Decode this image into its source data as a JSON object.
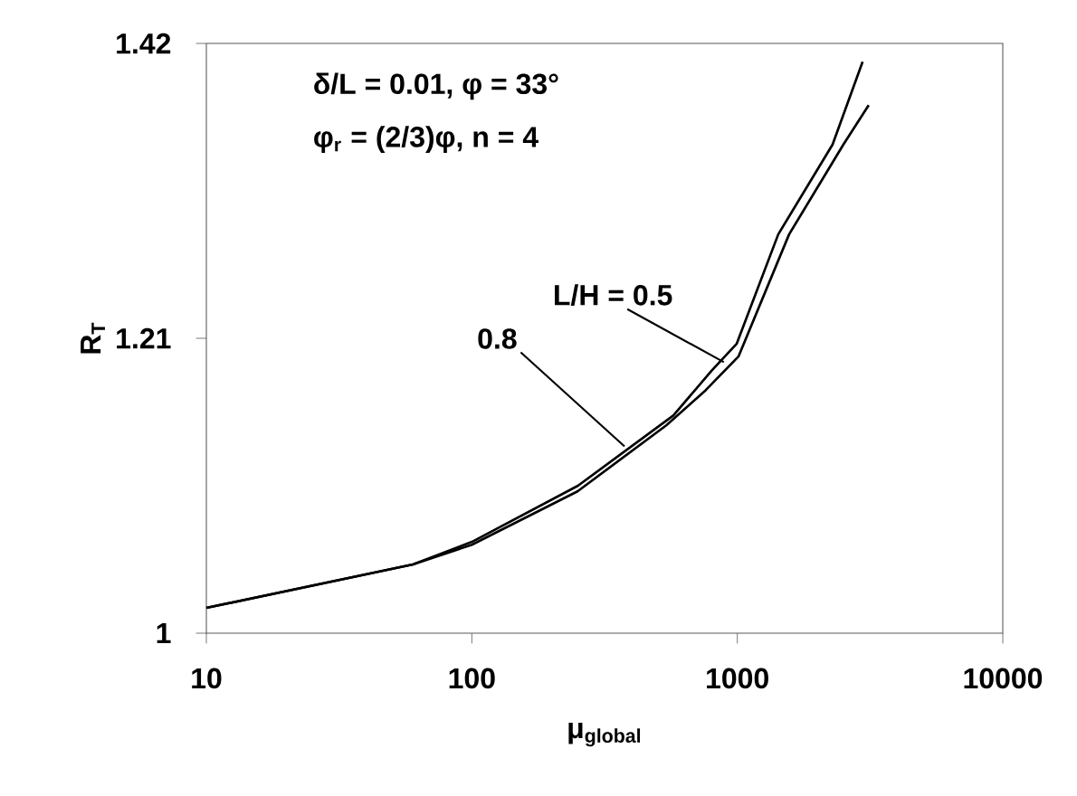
{
  "chart_data": {
    "type": "line",
    "xlabel": "μ$_{global}$",
    "ylabel": "R$_{T}$",
    "log": "x",
    "xlim": [
      10,
      10000
    ],
    "xticks": [
      10,
      100,
      1000,
      10000
    ],
    "ylim": [
      1,
      1.42
    ],
    "yticks": [
      1,
      1.21,
      1.42
    ],
    "marker": "none",
    "line_style": "solid",
    "series": [
      {
        "color": "#000000",
        "x": [
          10,
          60,
          100,
          250,
          540,
          760,
          1010,
          1567,
          2510,
          3126
        ],
        "values": [
          1.018,
          1.049,
          1.063,
          1.101,
          1.148,
          1.173,
          1.197,
          1.284,
          1.348,
          1.376
        ]
      },
      {
        "color": "#000000",
        "x": [
          10,
          60,
          100,
          251,
          574,
          801,
          994,
          1426,
          2285,
          2965
        ],
        "values": [
          1.018,
          1.049,
          1.065,
          1.105,
          1.155,
          1.187,
          1.206,
          1.284,
          1.348,
          1.407
        ]
      }
    ],
    "annotations": [
      "δ/L = 0.01, φ = 33°",
      "φ$_{r}$ = (2/3)φ, n = 4",
      {
        "text": "L/H = 0.5",
        "x": 890,
        "y": 1.193
      },
      {
        "text": "0.8",
        "x": 376,
        "y": 1.133
      }
    ]
  }
}
